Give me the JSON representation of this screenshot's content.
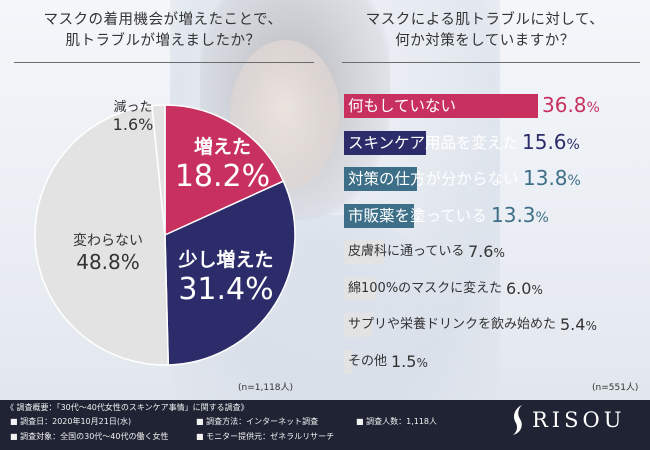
{
  "left_title": [
    "マスクの着用機会が増えたことで、",
    "肌トラブルが増えましたか？"
  ],
  "right_title": [
    "マスクによる肌トラブルに対して、",
    "何か対策をしていますか？"
  ],
  "left_n": "(n=1,118人)",
  "right_n": "(n=551人)",
  "colors": {
    "pink": "#c8315f",
    "navy": "#2d2c6b",
    "teal": "#3e6f88",
    "gray": "#e3e3e3",
    "divider": "#6b6b6b",
    "footer": "#1f2333"
  },
  "chart_data": [
    {
      "type": "pie",
      "title": "マスクの着用機会が増えたことで、肌トラブルが増えましたか？",
      "slices": [
        {
          "name": "増えた",
          "value_label": "18.2%",
          "value": 18.2,
          "color": "#c8315f"
        },
        {
          "name": "少し増えた",
          "value_label": "31.4%",
          "value": 31.4,
          "color": "#2d2c6b"
        },
        {
          "name": "変わらない",
          "value_label": "48.8%",
          "value": 48.8,
          "color": "#e3e3e3"
        },
        {
          "name": "減った",
          "value_label": "1.6%",
          "value": 1.6,
          "color": "#e3e3e3"
        }
      ]
    },
    {
      "type": "bar",
      "orientation": "horizontal",
      "title": "マスクによる肌トラブルに対して、何か対策をしていますか？",
      "categories": [
        "何もしていない",
        "スキンケア用品を変えた",
        "対策の仕方が分からない",
        "市販薬を塗っている",
        "皮膚科に通っている",
        "綿100%のマスクに変えた",
        "サプリや栄養ドリンクを飲み始めた",
        "その他"
      ],
      "values": [
        36.8,
        15.6,
        13.8,
        13.3,
        7.6,
        6.0,
        5.4,
        1.5
      ],
      "value_labels": [
        "36.8%",
        "15.6%",
        "13.8%",
        "13.3%",
        "7.6%",
        "6.0%",
        "5.4%",
        "1.5%"
      ],
      "bar_colors": [
        "#c8315f",
        "#2d2c6b",
        "#3e6f88",
        "#3e6f88",
        "#e3e3e3",
        "#e3e3e3",
        "#e3e3e3",
        "#e3e3e3"
      ],
      "xlim": [
        0,
        36.8
      ]
    }
  ],
  "footer": {
    "summary": "《 調査概要：「30代〜40代女性のスキンケア事情」に関する調査》",
    "date": "■ 調査日：2020年10月21日(水)",
    "method": "■ 調査方法：インターネット調査",
    "count": "■ 調査人数：1,118人",
    "target": "■ 調査対象：全国の30代〜40代の働く女性",
    "provider": "■ モニター提供元：ゼネラルリサーチ",
    "logo": "RISOU"
  }
}
